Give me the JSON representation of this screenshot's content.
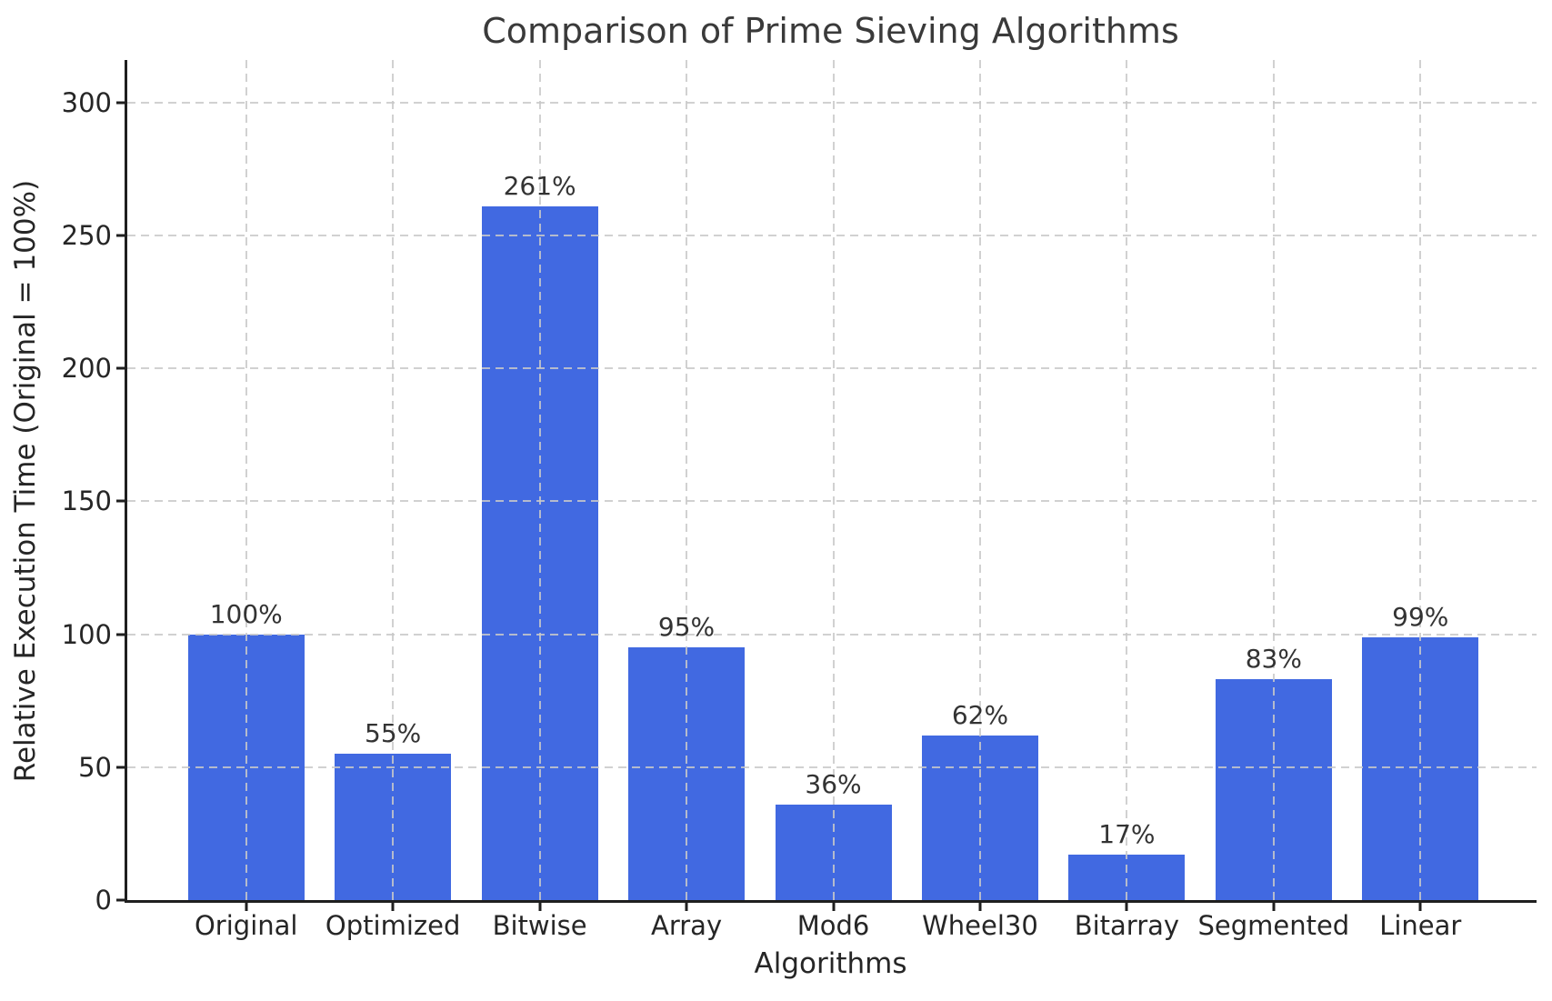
{
  "window": {
    "background": "#ffffff"
  },
  "chart_data": {
    "type": "bar",
    "title": "Comparison of Prime Sieving Algorithms",
    "xlabel": "Algorithms",
    "ylabel": "Relative Execution Time (Original = 100%)",
    "categories": [
      "Original",
      "Optimized",
      "Bitwise",
      "Array",
      "Mod6",
      "Wheel30",
      "Bitarray",
      "Segmented",
      "Linear"
    ],
    "values": [
      100,
      55,
      261,
      95,
      36,
      62,
      17,
      83,
      99
    ],
    "bar_labels": [
      "100%",
      "55%",
      "261%",
      "95%",
      "36%",
      "62%",
      "17%",
      "83%",
      "99%"
    ],
    "yticks": [
      0,
      50,
      100,
      150,
      200,
      250,
      300
    ],
    "ytick_labels": [
      "0",
      "50",
      "100",
      "150",
      "200",
      "250",
      "300"
    ],
    "ylim": [
      0,
      316
    ],
    "grid": {
      "visible": true,
      "style": "dashed",
      "axes": "both",
      "drawn_over_bars": true
    },
    "legend": "none",
    "colors": {
      "bar": "#4169E1",
      "grid": "#c9c9c9",
      "spine": "#1f1f1f",
      "title_text": "#3a3a3a",
      "tick_text": "#262626"
    }
  }
}
